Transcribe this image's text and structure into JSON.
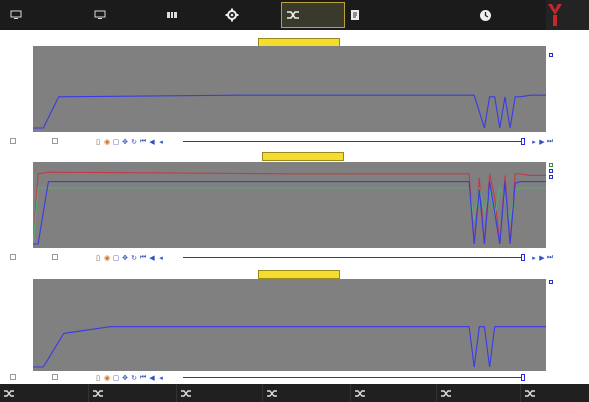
{
  "status_line": "",
  "nav": {
    "items": [
      {
        "label": "",
        "icon": "monitor-icon"
      },
      {
        "label": "",
        "icon": "monitor-icon"
      },
      {
        "label": "",
        "icon": "status-grid-icon"
      },
      {
        "label": "",
        "icon": "gear-icon"
      },
      {
        "label": "",
        "icon": "shuffle-icon"
      },
      {
        "label": "",
        "icon": "report-icon"
      },
      {
        "label": "",
        "icon": ""
      },
      {
        "label": "",
        "icon": "clock-icon"
      },
      {
        "label": "",
        "icon": "logo-icon"
      }
    ]
  },
  "toolbar": {
    "check_a": "",
    "check_b": ""
  },
  "panels": [
    {
      "title": "",
      "legend": [
        "",
        ""
      ]
    },
    {
      "title": "",
      "legend": [
        "",
        "",
        ""
      ]
    },
    {
      "title": "",
      "legend": [
        ""
      ]
    }
  ],
  "bottom_tabs": [
    {
      "label": ""
    },
    {
      "label": ""
    },
    {
      "label": ""
    },
    {
      "label": ""
    },
    {
      "label": ""
    },
    {
      "label": ""
    },
    {
      "label": ""
    }
  ],
  "colors": {
    "nav_bg": "#1b1b1b",
    "plot_bg": "#808080",
    "series_blue": "#3a3ae8",
    "series_green": "#4fae7a",
    "series_red": "#c23a4a",
    "title_bg": "#f4dc31"
  },
  "chart_data": [
    {
      "type": "line",
      "title": "",
      "x": [
        0,
        2,
        5,
        40,
        86,
        88,
        89,
        90,
        91,
        92,
        93,
        94,
        95,
        97,
        100
      ],
      "series": [
        {
          "values": [
            0,
            0,
            40,
            42,
            42,
            0,
            40,
            40,
            0,
            40,
            0,
            40,
            40,
            42,
            42
          ]
        }
      ],
      "ylim": [
        0,
        100
      ]
    },
    {
      "type": "line",
      "title": "",
      "x": [
        0,
        1,
        3,
        50,
        85,
        86,
        87,
        88,
        89,
        90,
        91,
        92,
        93,
        94,
        95,
        97,
        100
      ],
      "series": [
        {
          "values": [
            0,
            90,
            92,
            90,
            90,
            0,
            85,
            0,
            90,
            60,
            0,
            88,
            0,
            90,
            90,
            88,
            88
          ]
        },
        {
          "values": [
            0,
            72,
            72,
            72,
            72,
            30,
            72,
            40,
            72,
            35,
            72,
            60,
            30,
            70,
            72,
            72,
            72
          ]
        },
        {
          "values": [
            0,
            0,
            80,
            80,
            80,
            0,
            70,
            0,
            80,
            40,
            0,
            80,
            0,
            78,
            80,
            80,
            80
          ]
        }
      ],
      "ylim": [
        0,
        100
      ]
    },
    {
      "type": "line",
      "title": "",
      "x": [
        0,
        2,
        4,
        6,
        15,
        50,
        85,
        86,
        87,
        88,
        89,
        90,
        91,
        93,
        100
      ],
      "series": [
        {
          "values": [
            0,
            0,
            20,
            40,
            48,
            48,
            48,
            0,
            48,
            48,
            0,
            48,
            48,
            48,
            48
          ]
        }
      ],
      "ylim": [
        0,
        100
      ]
    }
  ]
}
